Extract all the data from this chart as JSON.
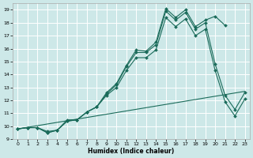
{
  "xlabel": "Humidex (Indice chaleur)",
  "background_color": "#cde8e8",
  "grid_color": "#ffffff",
  "line_color": "#1a6b5a",
  "xlim": [
    -0.5,
    23.5
  ],
  "ylim": [
    9,
    19.5
  ],
  "xticks": [
    0,
    1,
    2,
    3,
    4,
    5,
    6,
    7,
    8,
    9,
    10,
    11,
    12,
    13,
    14,
    15,
    16,
    17,
    18,
    19,
    20,
    21,
    22,
    23
  ],
  "yticks": [
    9,
    10,
    11,
    12,
    13,
    14,
    15,
    16,
    17,
    18,
    19
  ],
  "series": [
    {
      "x": [
        0,
        1,
        2,
        3,
        4,
        5,
        6,
        7,
        8,
        9,
        10,
        11,
        12,
        13,
        14,
        15,
        16,
        17,
        18,
        19,
        20,
        21
      ],
      "y": [
        9.8,
        9.9,
        9.9,
        9.6,
        9.7,
        10.5,
        10.5,
        11.1,
        11.5,
        12.6,
        13.3,
        14.7,
        15.9,
        15.8,
        16.5,
        19.1,
        18.4,
        19.0,
        17.7,
        18.2,
        18.5,
        17.8
      ]
    },
    {
      "x": [
        0,
        1,
        2,
        3,
        4,
        5,
        6,
        7,
        8,
        9,
        10,
        11,
        12,
        13,
        14,
        15,
        16,
        17,
        18,
        19,
        20,
        21,
        22,
        23
      ],
      "y": [
        9.8,
        9.9,
        9.9,
        9.5,
        9.7,
        10.4,
        10.5,
        11.1,
        11.5,
        12.5,
        13.2,
        14.6,
        15.7,
        15.7,
        16.3,
        18.9,
        18.2,
        18.8,
        17.5,
        18.0,
        14.8,
        12.4,
        11.3,
        12.6
      ]
    },
    {
      "x": [
        0,
        1,
        2,
        3,
        4,
        5,
        6,
        7,
        8,
        9,
        10,
        11,
        12,
        13,
        14,
        15,
        16,
        17,
        18,
        19,
        20,
        21,
        22,
        23
      ],
      "y": [
        9.8,
        9.9,
        9.9,
        9.5,
        9.7,
        10.4,
        10.5,
        11.1,
        11.5,
        12.4,
        13.0,
        14.3,
        15.3,
        15.3,
        15.9,
        18.4,
        17.7,
        18.3,
        17.0,
        17.5,
        14.3,
        11.9,
        10.8,
        12.1
      ]
    },
    {
      "x": [
        0,
        23
      ],
      "y": [
        9.8,
        12.7
      ],
      "no_marker": true
    }
  ]
}
